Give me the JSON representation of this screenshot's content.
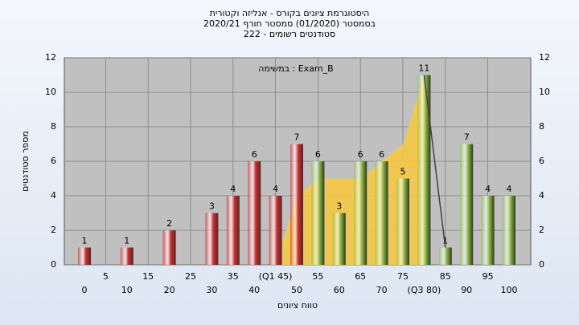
{
  "chart_data": {
    "type": "bar",
    "title": [
      "היסטוגרמת ציונים בקורס - אנליזה וקטורית",
      "בסמסטר  (01/2020)  סמסטר חורף  2020/21",
      "סטודנטים רשומים - 222"
    ],
    "subtitle": "במשימה : Exam_B",
    "x_label": "טווח ציונים",
    "y_label": "מספר סטודנטים",
    "categories": [
      "0",
      "5",
      "10",
      "15",
      "20",
      "25",
      "30",
      "35",
      "40",
      "(Q1 45)",
      "50",
      "55",
      "60",
      "65",
      "70",
      "75",
      "(Q3 80)",
      "85",
      "90",
      "95",
      "100"
    ],
    "values": [
      1,
      0,
      1,
      0,
      2,
      0,
      3,
      4,
      6,
      4,
      7,
      6,
      3,
      6,
      6,
      5,
      11,
      1,
      7,
      4,
      4
    ],
    "bar_colors": [
      "#e02828",
      "#e02828",
      "#e02828",
      "#e02828",
      "#e02828",
      "#e02828",
      "#e02828",
      "#e02828",
      "#e02828",
      "#e02828",
      "#e02828",
      "#8cbf3c",
      "#8cbf3c",
      "#8cbf3c",
      "#8cbf3c",
      "#8cbf3c",
      "#8cbf3c",
      "#8cbf3c",
      "#8cbf3c",
      "#8cbf3c",
      "#8cbf3c"
    ],
    "area": {
      "color": "#f5c842",
      "x": [
        45,
        50,
        55,
        60,
        65,
        70,
        75,
        80,
        80
      ],
      "values": [
        0,
        4,
        5,
        5,
        5,
        6,
        7,
        11,
        0
      ]
    },
    "line": {
      "color": "#404040",
      "x": [
        80,
        85
      ],
      "values": [
        11,
        1
      ]
    },
    "ylim": [
      0,
      12
    ],
    "yticks": [
      0,
      2,
      4,
      6,
      8,
      10,
      12
    ],
    "grid": true
  }
}
